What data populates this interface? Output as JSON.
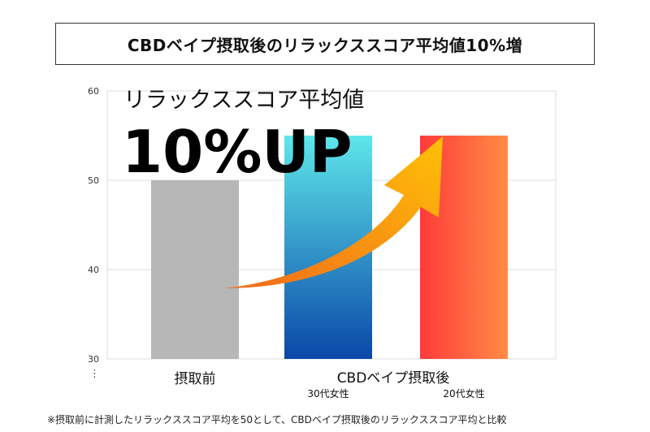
{
  "title": "CBDベイプ摂取後のリラックススコア平均値10%増",
  "overlay": {
    "subtitle": "リラックススコア平均値",
    "headline": "10%UP"
  },
  "footnote": "※摂取前に計測したリラックススコア平均を50として、CBDベイプ摂取後のリラックススコア平均と比較",
  "ellipsis": "⋮",
  "chart_data": {
    "type": "bar",
    "title": "CBDベイプ摂取後のリラックススコア平均値10%増",
    "categories": [
      "摂取前",
      "30代女性",
      "20代女性"
    ],
    "group_labels": [
      {
        "label": "摂取前",
        "covers": [
          "摂取前"
        ]
      },
      {
        "label": "CBDベイプ摂取後",
        "covers": [
          "30代女性",
          "20代女性"
        ]
      }
    ],
    "values": [
      50,
      55,
      55
    ],
    "ylim": [
      30,
      60
    ],
    "yticks": [
      30,
      40,
      50,
      60
    ],
    "grid": true,
    "bar_colors": [
      {
        "from": "#b7b7b7",
        "to": "#b7b7b7"
      },
      {
        "from": "#5ee7ea",
        "to": "#0a47a8"
      },
      {
        "from": "#ff3a3a",
        "to": "#ff8c45"
      }
    ],
    "arrow_colors": {
      "from": "#f26a1b",
      "to": "#ffc107"
    }
  }
}
